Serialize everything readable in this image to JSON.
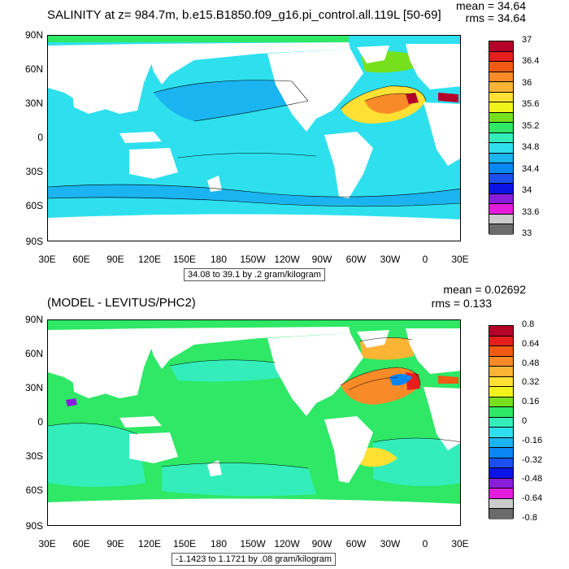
{
  "panels": [
    {
      "title": "SALINITY at z= 984.7m, b.e15.B1850.f09_g16.pi_control.all.119L [50-69]",
      "mean": "mean = 34.64",
      "rms": "rms = 34.64",
      "info": "34.08 to 39.1 by .2 gram/kilogram",
      "colorbar_labels": [
        "37",
        "36.4",
        "36",
        "35.6",
        "35.2",
        "34.8",
        "34.4",
        "34",
        "33.6",
        "33"
      ],
      "colors": [
        "#b5002a",
        "#e61e1e",
        "#f05a14",
        "#f88b28",
        "#fbb434",
        "#ffe033",
        "#f3f31c",
        "#76e01c",
        "#2ee866",
        "#33eebb",
        "#2ee0ee",
        "#1ab4f0",
        "#0a86f5",
        "#1c50ee",
        "#0a14e6",
        "#8a1cdc",
        "#e41cdc",
        "#cccccc",
        "#6b6b6b"
      ]
    },
    {
      "title": "(MODEL - LEVITUS/PHC2)",
      "mean": "mean = 0.02692",
      "rms": "rms = 0.133",
      "info": "-1.1423 to 1.1721 by .08 gram/kilogram",
      "colorbar_labels": [
        "0.8",
        "0.64",
        "0.48",
        "0.32",
        "0.16",
        "0",
        "-0.16",
        "-0.32",
        "-0.48",
        "-0.64",
        "-0.8"
      ],
      "colors": [
        "#b5002a",
        "#e61e1e",
        "#f05a14",
        "#f88b28",
        "#fbb434",
        "#ffe033",
        "#f3f31c",
        "#76e01c",
        "#2ee866",
        "#33eebb",
        "#2ee0ee",
        "#1ab4f0",
        "#0a86f5",
        "#1c50ee",
        "#0a14e6",
        "#8a1cdc",
        "#e41cdc",
        "#cccccc",
        "#6b6b6b"
      ]
    }
  ],
  "axes": {
    "lat_labels": [
      "90N",
      "60N",
      "30N",
      "0",
      "30S",
      "60S",
      "90S"
    ],
    "lon_labels": [
      "30E",
      "60E",
      "90E",
      "120E",
      "150E",
      "180",
      "150W",
      "120W",
      "90W",
      "60W",
      "30W",
      "0",
      "30E"
    ]
  }
}
